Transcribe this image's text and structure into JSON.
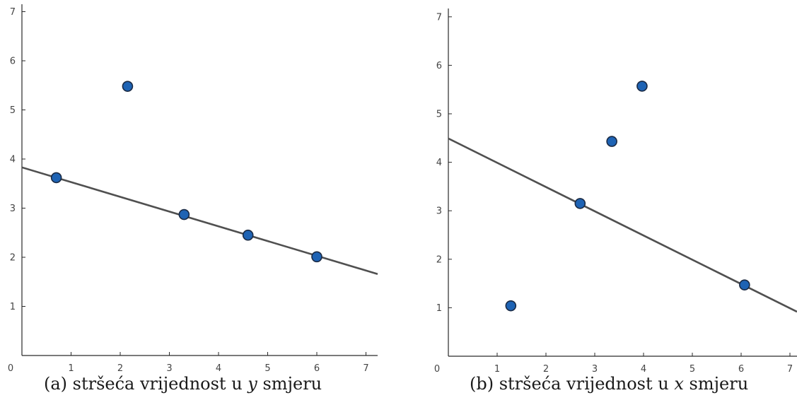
{
  "chart_data": [
    {
      "type": "scatter",
      "caption": {
        "prefix": "(a) stršeća vrijednost u ",
        "variable": "y",
        "suffix": " smjeru"
      },
      "xlim": [
        0,
        7
      ],
      "ylim": [
        0,
        7
      ],
      "x_ticks": [
        "0",
        "1",
        "2",
        "3",
        "4",
        "5",
        "6",
        "7"
      ],
      "y_ticks": [
        "1",
        "2",
        "3",
        "4",
        "5",
        "6",
        "7"
      ],
      "points": [
        {
          "x": 0.7,
          "y": 3.62
        },
        {
          "x": 2.15,
          "y": 5.48
        },
        {
          "x": 3.3,
          "y": 2.87
        },
        {
          "x": 4.6,
          "y": 2.45
        },
        {
          "x": 6.0,
          "y": 2.01
        }
      ],
      "regression_line": {
        "intercept": 3.83,
        "slope": -0.3
      },
      "grid": false
    },
    {
      "type": "scatter",
      "caption": {
        "prefix": "(b) stršeća vrijednost u ",
        "variable": "x",
        "suffix": " smjeru"
      },
      "xlim": [
        0,
        7
      ],
      "ylim": [
        0,
        7
      ],
      "x_ticks": [
        "0",
        "1",
        "2",
        "3",
        "4",
        "5",
        "6",
        "7"
      ],
      "y_ticks": [
        "1",
        "2",
        "3",
        "4",
        "5",
        "6",
        "7"
      ],
      "points": [
        {
          "x": 1.28,
          "y": 1.04
        },
        {
          "x": 2.7,
          "y": 3.15
        },
        {
          "x": 3.35,
          "y": 4.43
        },
        {
          "x": 3.97,
          "y": 5.57
        },
        {
          "x": 6.07,
          "y": 1.47
        }
      ],
      "regression_line": {
        "intercept": 4.49,
        "slope": -0.5
      },
      "grid": false
    }
  ],
  "colors": {
    "point_fill": "#1e63b4",
    "point_stroke": "#1a2a44",
    "line": "#505050",
    "axis": "#2a2a2a"
  }
}
